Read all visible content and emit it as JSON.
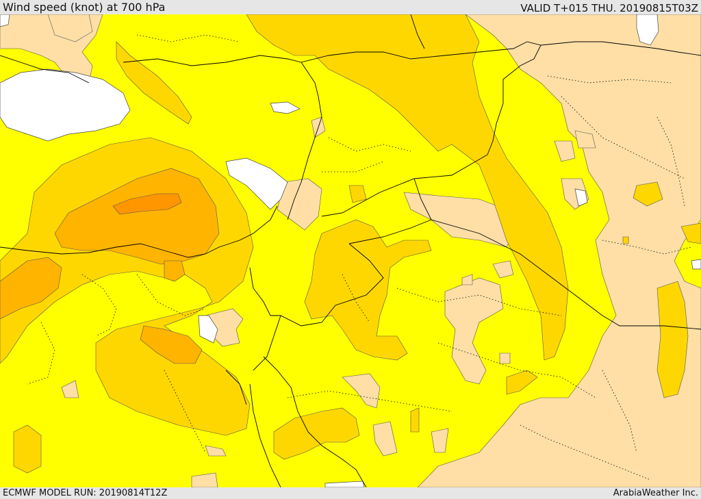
{
  "header": {
    "title": "Wind speed (knot) at 700 hPa",
    "valid_time": "VALID T+015 THU. 20190815T03Z"
  },
  "footer": {
    "model_run": "ECMWF MODEL RUN: 20190814T12Z",
    "credit": "ArabiaWeather Inc."
  },
  "colors": {
    "very_low": "#ffdfa6",
    "low": "#ffff00",
    "moderate": "#ffd700",
    "fresh": "#ffb400",
    "strong": "#ff9600",
    "water_masked": "#ffffff",
    "borders": "#000000"
  }
}
